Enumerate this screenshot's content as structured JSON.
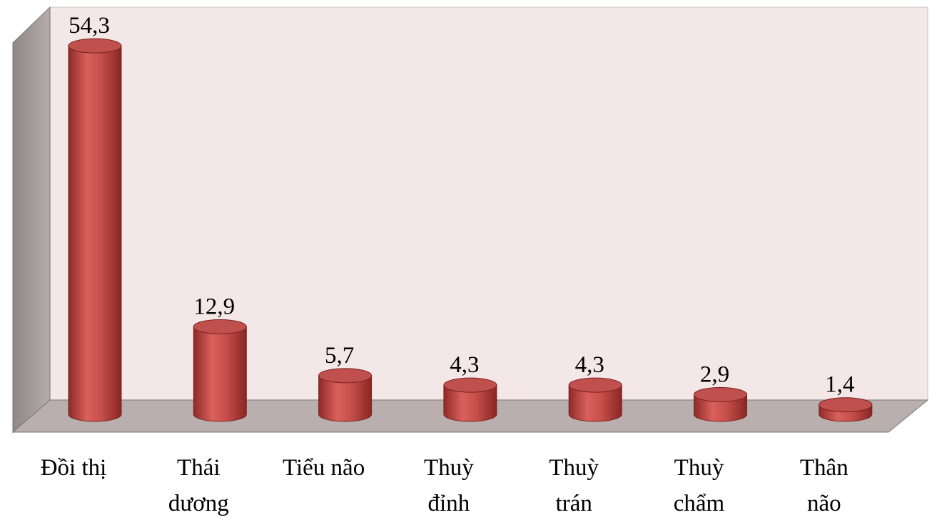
{
  "chart_data": {
    "type": "bar",
    "categories": [
      "Đồi thị",
      "Thái dương",
      "Tiểu não",
      "Thuỳ đỉnh",
      "Thuỳ trán",
      "Thuỳ chẩm",
      "Thân não"
    ],
    "values": [
      54.3,
      12.9,
      5.7,
      4.3,
      4.3,
      2.9,
      1.4
    ],
    "value_labels": [
      "54,3",
      "12,9",
      "5,7",
      "4,3",
      "4,3",
      "2,9",
      "1,4"
    ],
    "color": "#c0504d"
  }
}
